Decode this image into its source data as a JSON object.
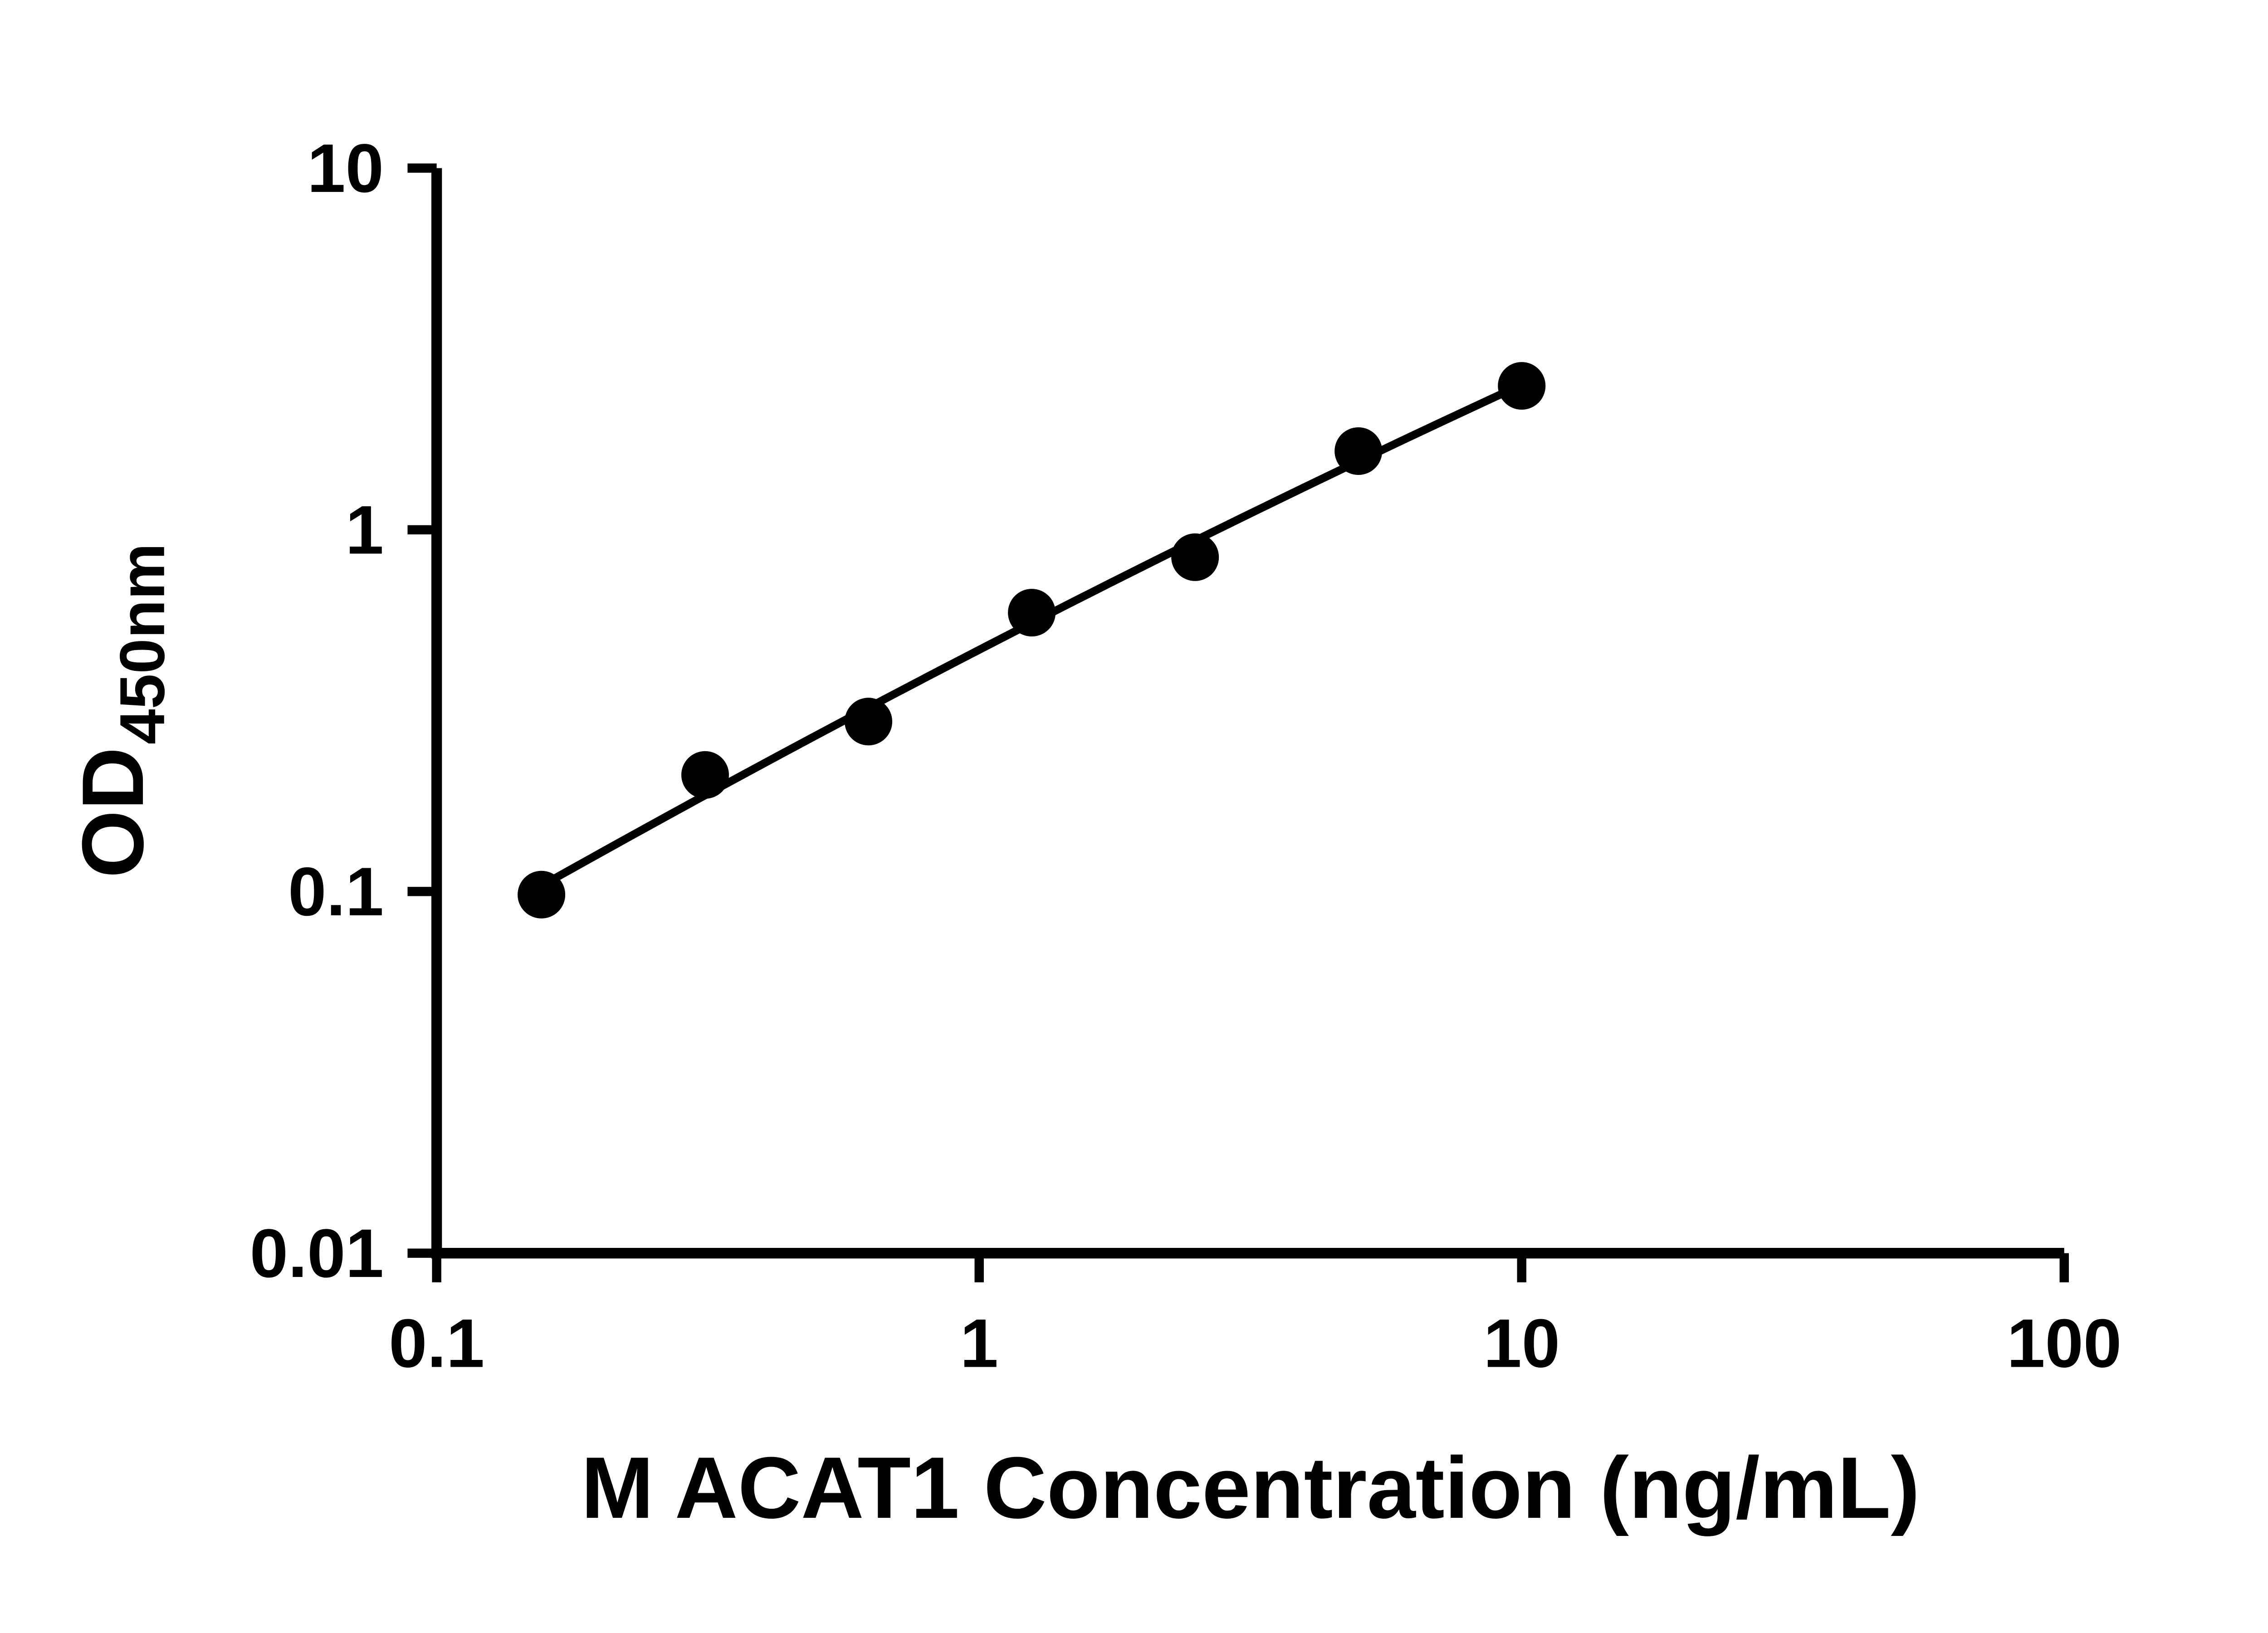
{
  "chart_data": {
    "type": "scatter",
    "xlabel": "M ACAT1 Concentration (ng/mL)",
    "ylabel_main": "OD",
    "ylabel_sub": "450nm",
    "x_scale": "log",
    "y_scale": "log",
    "xlim": [
      0.1,
      100
    ],
    "ylim": [
      0.01,
      10
    ],
    "x_ticks": [
      "0.1",
      "1",
      "10",
      "100"
    ],
    "y_ticks": [
      "0.01",
      "0.1",
      "1",
      "10"
    ],
    "grid": false,
    "legend": null,
    "points": [
      {
        "x": 0.156,
        "y": 0.098
      },
      {
        "x": 0.3125,
        "y": 0.21
      },
      {
        "x": 0.625,
        "y": 0.295
      },
      {
        "x": 1.25,
        "y": 0.59
      },
      {
        "x": 2.5,
        "y": 0.84
      },
      {
        "x": 5,
        "y": 1.65
      },
      {
        "x": 10,
        "y": 2.5
      }
    ],
    "fit_curve": {
      "type": "log-log quadratic fit",
      "c0": -0.764,
      "c1": 0.775,
      "c2": -0.0182,
      "x_start": 0.156,
      "x_end": 10
    },
    "marker_color": "#000000",
    "line_color": "#000000",
    "axis_color": "#000000",
    "background": "#ffffff"
  }
}
